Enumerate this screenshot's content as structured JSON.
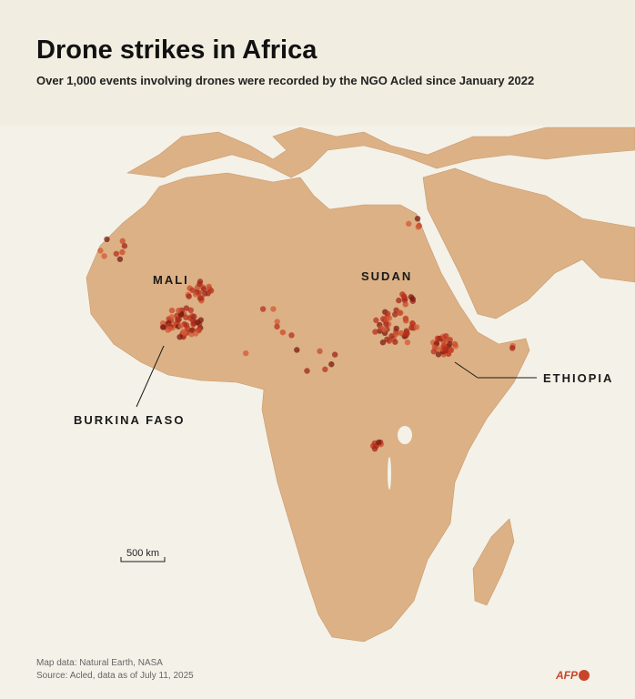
{
  "header": {
    "title": "Drone strikes in Africa",
    "subtitle": "Over 1,000 events involving drones were recorded by the NGO Acled since January 2022"
  },
  "map": {
    "labels": [
      "MALI",
      "SUDAN",
      "ETHIOPIA",
      "BURKINA FASO"
    ],
    "scale": "500 km"
  },
  "footer": {
    "credits": [
      "Map data: Natural Earth, NASA",
      "Source: Acled, data as of July 11, 2025"
    ],
    "logo": "AFP"
  }
}
